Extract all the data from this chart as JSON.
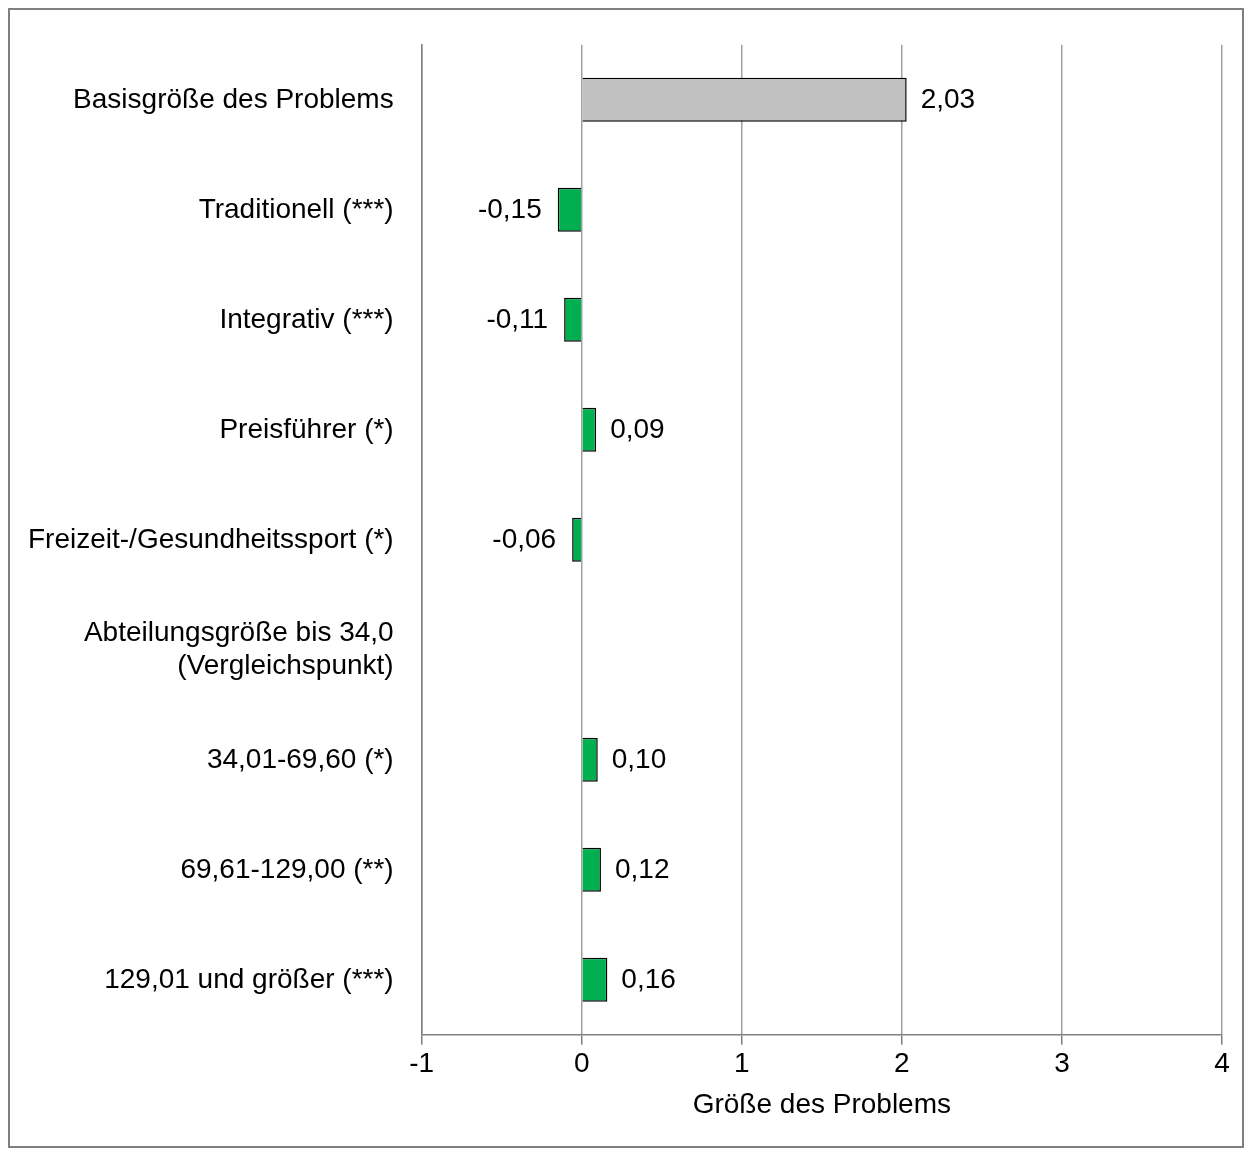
{
  "chart_data": {
    "type": "bar",
    "orientation": "horizontal",
    "xlabel": "Größe des Problems",
    "categories": [
      "Basisgröße des Problems",
      "Traditionell (***)",
      "Integrativ (***)",
      "Preisführer (*)",
      "Freizeit-/Gesundheitssport (*)",
      "Abteilungsgröße bis 34,0 (Vergleichspunkt)",
      "34,01-69,60 (*)",
      "69,61-129,00 (**)",
      "129,01 und größer (***)"
    ],
    "values": [
      2.03,
      -0.15,
      -0.11,
      0.09,
      -0.06,
      null,
      0.1,
      0.12,
      0.16
    ],
    "colors": [
      "#c0c0c0",
      "#00b050",
      "#00b050",
      "#00b050",
      "#00b050",
      "#00b050",
      "#00b050",
      "#00b050",
      "#00b050"
    ],
    "value_labels": [
      "2,03",
      "-0,15",
      "-0,11",
      "0,09",
      "-0,06",
      null,
      "0,10",
      "0,12",
      "0,16"
    ],
    "xlim": [
      -1,
      4
    ],
    "xticks": [
      -1,
      0,
      1,
      2,
      3,
      4
    ],
    "grid": "x",
    "legend": false
  }
}
